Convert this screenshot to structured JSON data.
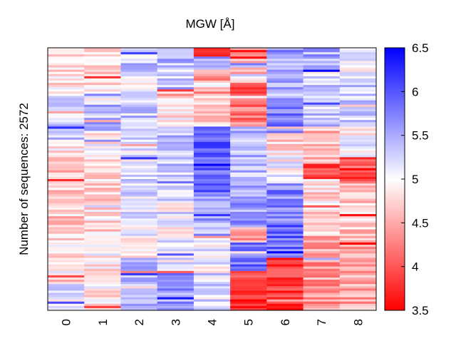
{
  "chart_data": {
    "type": "heatmap",
    "title": "MGW [Å]",
    "ylabel": "Number of sequences: 2572",
    "xlabel": "",
    "x_ticks": [
      "0",
      "1",
      "2",
      "3",
      "4",
      "5",
      "6",
      "7",
      "8"
    ],
    "colorbar": {
      "min": 3.5,
      "max": 6.5,
      "center": 5.0,
      "ticks": [
        "3.5",
        "4",
        "4.5",
        "5",
        "5.5",
        "6",
        "6.5"
      ],
      "colors": {
        "low": "#ff0000",
        "mid": "#ffffff",
        "high": "#0000ff"
      }
    },
    "rows_sampled": 120,
    "column_profiles": [
      {
        "x": "0",
        "segments": [
          [
            0,
            0.18,
            4.8
          ],
          [
            0.18,
            0.36,
            5.3
          ],
          [
            0.36,
            0.46,
            4.8
          ],
          [
            0.46,
            0.75,
            4.7
          ],
          [
            0.75,
            0.9,
            4.9
          ],
          [
            0.9,
            1.0,
            5.1
          ]
        ]
      },
      {
        "x": "1",
        "segments": [
          [
            0,
            0.14,
            4.8
          ],
          [
            0.14,
            0.22,
            5.0
          ],
          [
            0.22,
            0.32,
            5.4
          ],
          [
            0.32,
            0.46,
            4.9
          ],
          [
            0.46,
            0.72,
            4.8
          ],
          [
            0.72,
            1.0,
            4.9
          ]
        ]
      },
      {
        "x": "2",
        "segments": [
          [
            0,
            0.1,
            5.3
          ],
          [
            0.1,
            0.2,
            5.1
          ],
          [
            0.2,
            0.36,
            5.3
          ],
          [
            0.36,
            0.5,
            5.1
          ],
          [
            0.5,
            0.68,
            5.2
          ],
          [
            0.68,
            0.8,
            5.0
          ],
          [
            0.8,
            1.0,
            5.4
          ]
        ]
      },
      {
        "x": "3",
        "segments": [
          [
            0,
            0.06,
            5.6
          ],
          [
            0.06,
            0.14,
            5.3
          ],
          [
            0.14,
            0.3,
            4.9
          ],
          [
            0.3,
            0.42,
            5.4
          ],
          [
            0.42,
            0.58,
            5.3
          ],
          [
            0.58,
            0.72,
            5.0
          ],
          [
            0.72,
            0.86,
            5.1
          ],
          [
            0.86,
            1.0,
            5.6
          ]
        ]
      },
      {
        "x": "4",
        "segments": [
          [
            0,
            0.03,
            3.7
          ],
          [
            0.03,
            0.08,
            5.5
          ],
          [
            0.08,
            0.18,
            4.4
          ],
          [
            0.18,
            0.3,
            4.8
          ],
          [
            0.3,
            0.56,
            5.9
          ],
          [
            0.56,
            0.72,
            5.5
          ],
          [
            0.72,
            0.86,
            5.1
          ],
          [
            0.86,
            1.0,
            5.2
          ]
        ]
      },
      {
        "x": "5",
        "segments": [
          [
            0,
            0.06,
            4.6
          ],
          [
            0.06,
            0.14,
            4.8
          ],
          [
            0.14,
            0.22,
            4.0
          ],
          [
            0.22,
            0.3,
            4.2
          ],
          [
            0.3,
            0.5,
            5.4
          ],
          [
            0.5,
            0.68,
            5.6
          ],
          [
            0.68,
            0.74,
            4.5
          ],
          [
            0.74,
            0.85,
            5.8
          ],
          [
            0.85,
            1.0,
            3.8
          ]
        ]
      },
      {
        "x": "6",
        "segments": [
          [
            0,
            0.06,
            5.6
          ],
          [
            0.06,
            0.22,
            5.5
          ],
          [
            0.22,
            0.3,
            5.8
          ],
          [
            0.3,
            0.4,
            4.8
          ],
          [
            0.4,
            0.52,
            5.0
          ],
          [
            0.52,
            0.66,
            5.7
          ],
          [
            0.66,
            0.8,
            5.9
          ],
          [
            0.8,
            1.0,
            3.8
          ]
        ]
      },
      {
        "x": "7",
        "segments": [
          [
            0,
            0.1,
            5.5
          ],
          [
            0.1,
            0.3,
            5.3
          ],
          [
            0.3,
            0.44,
            4.6
          ],
          [
            0.44,
            0.5,
            3.9
          ],
          [
            0.5,
            0.72,
            4.8
          ],
          [
            0.72,
            1.0,
            4.4
          ]
        ]
      },
      {
        "x": "8",
        "segments": [
          [
            0,
            0.12,
            5.1
          ],
          [
            0.12,
            0.28,
            5.3
          ],
          [
            0.28,
            0.42,
            5.0
          ],
          [
            0.42,
            0.52,
            4.0
          ],
          [
            0.52,
            0.7,
            4.7
          ],
          [
            0.7,
            1.0,
            4.5
          ]
        ]
      }
    ]
  }
}
